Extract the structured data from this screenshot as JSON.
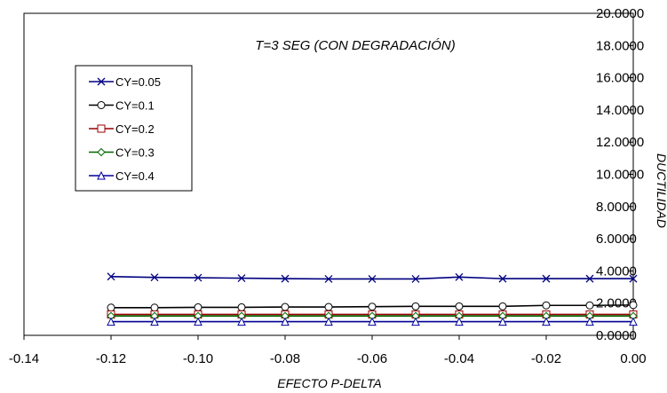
{
  "chart_data": {
    "type": "line",
    "title": "T=3 SEG (CON DEGRADACIÓN)",
    "xlabel": "EFECTO P-DELTA",
    "ylabel": "DUCTILIDAD",
    "xlim": [
      -0.14,
      0.0
    ],
    "ylim": [
      0,
      20
    ],
    "x_ticks": [
      "-0.14",
      "-0.12",
      "-0.10",
      "-0.08",
      "-0.06",
      "-0.04",
      "-0.02",
      "0.00"
    ],
    "y_ticks": [
      "0.0000",
      "2.0000",
      "4.0000",
      "6.0000",
      "8.0000",
      "10.0000",
      "12.0000",
      "14.0000",
      "16.0000",
      "18.0000",
      "20.0000"
    ],
    "grid": false,
    "legend_position": "left",
    "x": [
      -0.12,
      -0.11,
      -0.1,
      -0.09,
      -0.08,
      -0.07,
      -0.06,
      -0.05,
      -0.04,
      -0.03,
      -0.02,
      -0.01,
      0.0
    ],
    "series": [
      {
        "name": "CY=0.05",
        "color": "#000080",
        "marker": "x",
        "values": [
          3.65,
          3.6,
          3.58,
          3.55,
          3.52,
          3.5,
          3.5,
          3.5,
          3.62,
          3.52,
          3.52,
          3.52,
          3.52
        ]
      },
      {
        "name": "CY=0.1",
        "color": "#000000",
        "marker": "circle",
        "values": [
          1.72,
          1.72,
          1.74,
          1.74,
          1.76,
          1.76,
          1.78,
          1.8,
          1.8,
          1.8,
          1.86,
          1.86,
          1.88
        ]
      },
      {
        "name": "CY=0.2",
        "color": "#990000",
        "marker": "square",
        "values": [
          1.3,
          1.3,
          1.3,
          1.3,
          1.3,
          1.3,
          1.3,
          1.3,
          1.3,
          1.3,
          1.3,
          1.3,
          1.3
        ]
      },
      {
        "name": "CY=0.3",
        "color": "#006600",
        "marker": "diamond",
        "values": [
          1.2,
          1.2,
          1.2,
          1.2,
          1.2,
          1.2,
          1.2,
          1.2,
          1.2,
          1.2,
          1.2,
          1.2,
          1.2
        ]
      },
      {
        "name": "CY=0.4",
        "color": "#000099",
        "marker": "triangle",
        "values": [
          0.85,
          0.85,
          0.85,
          0.85,
          0.85,
          0.85,
          0.85,
          0.85,
          0.85,
          0.85,
          0.85,
          0.85,
          0.85
        ]
      }
    ]
  }
}
